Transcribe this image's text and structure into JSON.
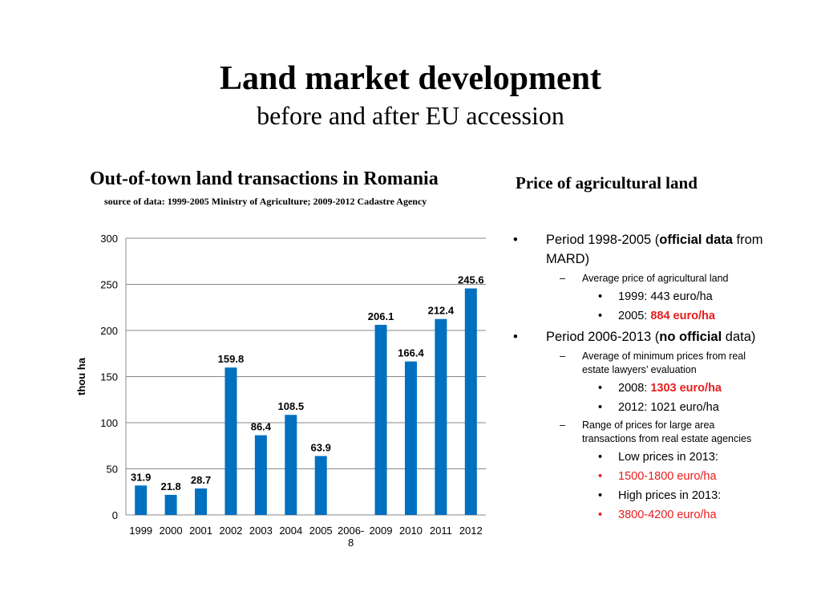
{
  "slide": {
    "title": "Land market development",
    "subtitle": "before and after EU accession"
  },
  "chart_data": {
    "type": "bar",
    "title": "Out-of-town land transactions in Romania",
    "subtitle": "source of data: 1999-2005 Ministry of Agriculture; 2009-2012 Cadastre Agency",
    "ylabel": "thou ha",
    "xlabel": "",
    "ylim": [
      0,
      300
    ],
    "yticks": [
      0,
      50,
      100,
      150,
      200,
      250,
      300
    ],
    "categories": [
      "1999",
      "2000",
      "2001",
      "2002",
      "2003",
      "2004",
      "2005",
      "2006-8",
      "2009",
      "2010",
      "2011",
      "2012"
    ],
    "values": [
      31.9,
      21.8,
      28.7,
      159.8,
      86.4,
      108.5,
      63.9,
      null,
      206.1,
      166.4,
      212.4,
      245.6
    ],
    "data_labels": [
      "31.9",
      "21.8",
      "28.7",
      "159.8",
      "86.4",
      "108.5",
      "63.9",
      "",
      "206.1",
      "166.4",
      "212.4",
      "245.6"
    ],
    "bar_color": "#0070c0",
    "grid": true,
    "legend": "none"
  },
  "right": {
    "heading": "Price of agricultural land",
    "bullets": [
      {
        "level": 1,
        "marker": "•",
        "runs": [
          {
            "t": "Period 1998-2005 ("
          },
          {
            "t": "official data",
            "b": true
          },
          {
            "t": " from MARD)"
          }
        ]
      },
      {
        "level": 2,
        "marker": "–",
        "runs": [
          {
            "t": "Average price of  agricultural land"
          }
        ]
      },
      {
        "level": 3,
        "marker": "•",
        "runs": [
          {
            "t": "1999: 443 euro/ha"
          }
        ]
      },
      {
        "level": 3,
        "marker": "•",
        "runs": [
          {
            "t": "2005: "
          },
          {
            "t": "884 euro/ha",
            "b": true,
            "red": true
          }
        ]
      },
      {
        "level": 1,
        "marker": "•",
        "runs": [
          {
            "t": "Period 2006-2013 ("
          },
          {
            "t": "no official",
            "b": true
          },
          {
            "t": " data)"
          }
        ]
      },
      {
        "level": 2,
        "marker": "–",
        "runs": [
          {
            "t": "Average of minimum  prices from real estate lawyers’ evaluation"
          }
        ]
      },
      {
        "level": 3,
        "marker": "•",
        "runs": [
          {
            "t": "2008: "
          },
          {
            "t": "1303 euro/ha",
            "b": true,
            "red": true
          }
        ]
      },
      {
        "level": 3,
        "marker": "•",
        "runs": [
          {
            "t": "2012: 1021 euro/ha"
          }
        ]
      },
      {
        "level": 2,
        "marker": "–",
        "runs": [
          {
            "t": "Range of prices for large  area transactions  from real estate agencies"
          }
        ]
      },
      {
        "level": 3,
        "marker": "•",
        "runs": [
          {
            "t": "Low prices in 2013:"
          }
        ]
      },
      {
        "level": 3,
        "marker": "•",
        "red_marker": true,
        "runs": [
          {
            "t": "1500-1800 euro/ha",
            "red": true
          }
        ]
      },
      {
        "level": 3,
        "marker": "•",
        "runs": [
          {
            "t": "High prices in 2013:"
          }
        ]
      },
      {
        "level": 3,
        "marker": "•",
        "red_marker": true,
        "runs": [
          {
            "t": "3800-4200 euro/ha",
            "red": true
          }
        ]
      }
    ]
  }
}
